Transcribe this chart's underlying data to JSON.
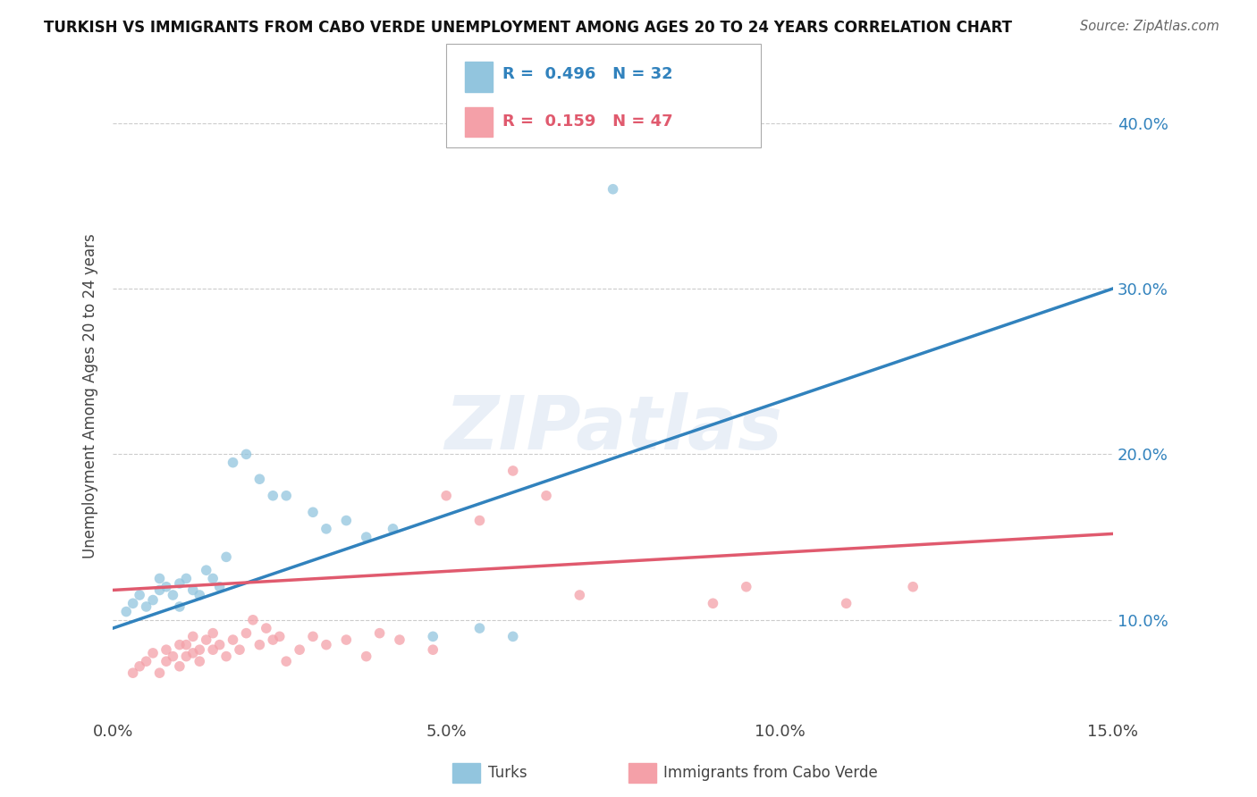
{
  "title": "TURKISH VS IMMIGRANTS FROM CABO VERDE UNEMPLOYMENT AMONG AGES 20 TO 24 YEARS CORRELATION CHART",
  "source": "Source: ZipAtlas.com",
  "xlabel": "",
  "ylabel": "Unemployment Among Ages 20 to 24 years",
  "watermark": "ZIPatlas",
  "legend_turks": "Turks",
  "legend_cabo": "Immigrants from Cabo Verde",
  "R_turks": 0.496,
  "N_turks": 32,
  "R_cabo": 0.159,
  "N_cabo": 47,
  "xlim": [
    0.0,
    0.15
  ],
  "ylim": [
    0.04,
    0.43
  ],
  "xticks": [
    0.0,
    0.05,
    0.1,
    0.15
  ],
  "yticks": [
    0.1,
    0.2,
    0.3,
    0.4
  ],
  "color_turks": "#92c5de",
  "color_cabo": "#f4a0a8",
  "color_turks_line": "#3182bd",
  "color_cabo_line": "#e05a6e",
  "turks_x": [
    0.002,
    0.003,
    0.004,
    0.005,
    0.006,
    0.007,
    0.007,
    0.008,
    0.009,
    0.01,
    0.01,
    0.011,
    0.012,
    0.013,
    0.014,
    0.015,
    0.016,
    0.017,
    0.018,
    0.02,
    0.022,
    0.024,
    0.026,
    0.03,
    0.032,
    0.035,
    0.038,
    0.042,
    0.048,
    0.055,
    0.06,
    0.075
  ],
  "turks_y": [
    0.105,
    0.11,
    0.115,
    0.108,
    0.112,
    0.118,
    0.125,
    0.12,
    0.115,
    0.122,
    0.108,
    0.125,
    0.118,
    0.115,
    0.13,
    0.125,
    0.12,
    0.138,
    0.195,
    0.2,
    0.185,
    0.175,
    0.175,
    0.165,
    0.155,
    0.16,
    0.15,
    0.155,
    0.09,
    0.095,
    0.09,
    0.36
  ],
  "cabo_x": [
    0.003,
    0.004,
    0.005,
    0.006,
    0.007,
    0.008,
    0.008,
    0.009,
    0.01,
    0.01,
    0.011,
    0.011,
    0.012,
    0.012,
    0.013,
    0.013,
    0.014,
    0.015,
    0.015,
    0.016,
    0.017,
    0.018,
    0.019,
    0.02,
    0.021,
    0.022,
    0.023,
    0.024,
    0.025,
    0.026,
    0.028,
    0.03,
    0.032,
    0.035,
    0.038,
    0.04,
    0.043,
    0.048,
    0.05,
    0.055,
    0.06,
    0.065,
    0.07,
    0.09,
    0.095,
    0.11,
    0.12
  ],
  "cabo_y": [
    0.068,
    0.072,
    0.075,
    0.08,
    0.068,
    0.075,
    0.082,
    0.078,
    0.085,
    0.072,
    0.078,
    0.085,
    0.08,
    0.09,
    0.082,
    0.075,
    0.088,
    0.082,
    0.092,
    0.085,
    0.078,
    0.088,
    0.082,
    0.092,
    0.1,
    0.085,
    0.095,
    0.088,
    0.09,
    0.075,
    0.082,
    0.09,
    0.085,
    0.088,
    0.078,
    0.092,
    0.088,
    0.082,
    0.175,
    0.16,
    0.19,
    0.175,
    0.115,
    0.11,
    0.12,
    0.11,
    0.12
  ],
  "turks_line_x": [
    0.0,
    0.15
  ],
  "turks_line_y": [
    0.095,
    0.3
  ],
  "cabo_line_x": [
    0.0,
    0.15
  ],
  "cabo_line_y": [
    0.118,
    0.152
  ]
}
